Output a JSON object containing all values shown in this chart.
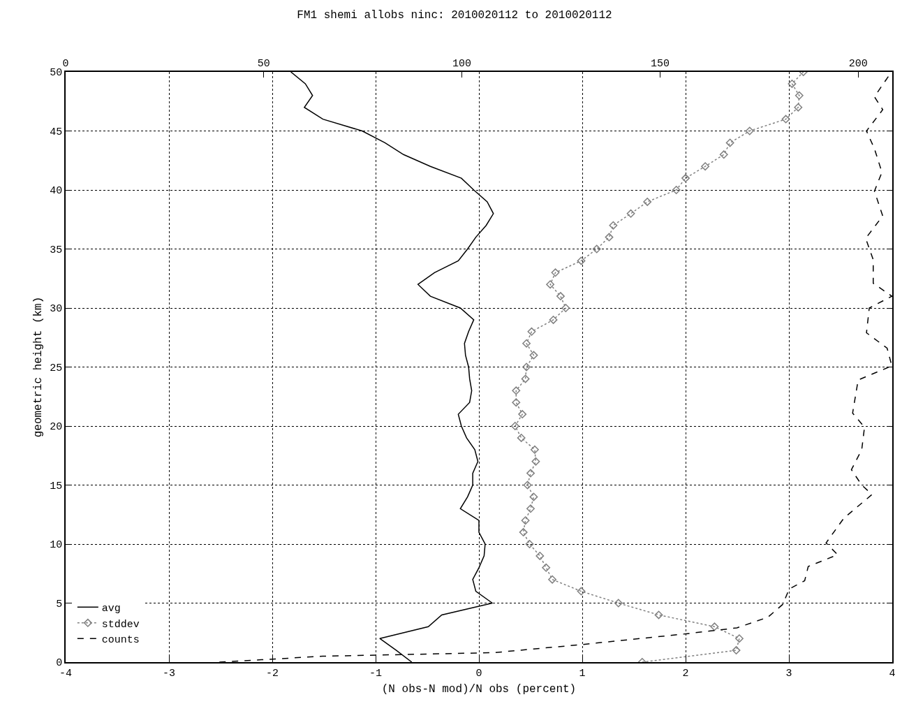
{
  "chart_data": {
    "type": "line",
    "title": "FM1 shemi allobs ninc: 2010020112 to 2010020112",
    "xlabel": "(N obs-N mod)/N obs (percent)",
    "ylabel": "geometric height (km)",
    "xlim": [
      -4,
      4
    ],
    "xticks": [
      -4,
      -3,
      -2,
      -1,
      0,
      1,
      2,
      3,
      4
    ],
    "x2lim": [
      0,
      208.6
    ],
    "x2ticks": [
      0,
      50,
      100,
      150,
      200
    ],
    "ylim": [
      0,
      50
    ],
    "yticks": [
      0,
      5,
      10,
      15,
      20,
      25,
      30,
      35,
      40,
      45,
      50
    ],
    "grid": true,
    "legend": "bottom left",
    "series": [
      {
        "name": "avg",
        "color": "#000000",
        "line_style": "solid",
        "marker": "none",
        "x": [
          -0.65,
          -0.8,
          -0.96,
          -0.49,
          -0.36,
          0.13,
          -0.03,
          -0.06,
          0.0,
          0.05,
          0.06,
          0.0,
          0.0,
          -0.18,
          -0.11,
          -0.06,
          -0.06,
          -0.01,
          -0.04,
          -0.12,
          -0.17,
          -0.2,
          -0.09,
          -0.07,
          -0.09,
          -0.1,
          -0.13,
          -0.14,
          -0.1,
          -0.05,
          -0.18,
          -0.47,
          -0.59,
          -0.43,
          -0.2,
          -0.11,
          -0.03,
          0.07,
          0.14,
          0.08,
          -0.05,
          -0.17,
          -0.47,
          -0.73,
          -0.91,
          -1.13,
          -1.51,
          -1.69,
          -1.61,
          -1.68,
          -1.82
        ],
        "values": [
          0,
          1,
          2,
          3,
          4,
          5,
          6,
          7,
          8,
          9,
          10,
          11,
          12,
          13,
          14,
          15,
          16,
          17,
          18,
          19,
          20,
          21,
          22,
          23,
          24,
          25,
          26,
          27,
          28,
          29,
          30,
          31,
          32,
          33,
          34,
          35,
          36,
          37,
          38,
          39,
          40,
          41,
          42,
          43,
          44,
          45,
          46,
          47,
          48,
          49,
          50
        ]
      },
      {
        "name": "stddev",
        "color": "#808080",
        "line_style": "dotted",
        "marker": "diamond",
        "x": [
          1.58,
          2.49,
          2.52,
          2.28,
          1.74,
          1.35,
          0.99,
          0.71,
          0.65,
          0.59,
          0.49,
          0.43,
          0.45,
          0.5,
          0.53,
          0.47,
          0.5,
          0.55,
          0.54,
          0.41,
          0.35,
          0.42,
          0.36,
          0.36,
          0.45,
          0.46,
          0.53,
          0.46,
          0.51,
          0.72,
          0.84,
          0.79,
          0.69,
          0.74,
          0.99,
          1.14,
          1.26,
          1.3,
          1.47,
          1.63,
          1.91,
          2.0,
          2.19,
          2.37,
          2.43,
          2.62,
          2.97,
          3.09,
          3.1,
          3.03,
          3.14
        ],
        "values": [
          0,
          1,
          2,
          3,
          4,
          5,
          6,
          7,
          8,
          9,
          10,
          11,
          12,
          13,
          14,
          15,
          16,
          17,
          18,
          19,
          20,
          21,
          22,
          23,
          24,
          25,
          26,
          27,
          28,
          29,
          30,
          31,
          32,
          33,
          34,
          35,
          36,
          37,
          38,
          39,
          40,
          41,
          42,
          43,
          44,
          45,
          46,
          47,
          48,
          49,
          50
        ]
      },
      {
        "name": "counts",
        "color": "#000000",
        "line_style": "dashed",
        "marker": "none",
        "axis": "x2",
        "x": [
          38.8,
          49.4,
          64.9,
          108.1,
          130.6,
          156.6,
          169.4,
          177.2,
          181.0,
          182.6,
          186.5,
          187.4,
          194.8,
          191.9,
          196.4,
          203.5,
          200.9,
          198.3,
          200.9,
          201.6,
          198.6,
          200.0,
          208.5,
          207.3,
          202.1,
          202.8,
          208.5,
          203.8,
          203.8,
          201.9,
          206.2,
          204.1,
          206.0,
          204.1,
          202.1,
          206.2,
          204.1,
          208.0
        ],
        "values": [
          0.0,
          0.2,
          0.5,
          0.8,
          1.5,
          2.4,
          2.9,
          3.8,
          4.9,
          6.2,
          6.9,
          8.1,
          9.1,
          10.1,
          12.2,
          14.2,
          15.0,
          16.3,
          18.0,
          19.9,
          21.1,
          23.9,
          25.1,
          26.6,
          27.9,
          30.0,
          31.0,
          32.1,
          34.1,
          35.9,
          37.8,
          39.9,
          41.5,
          43.5,
          45.0,
          46.8,
          47.9,
          49.8
        ]
      }
    ]
  }
}
